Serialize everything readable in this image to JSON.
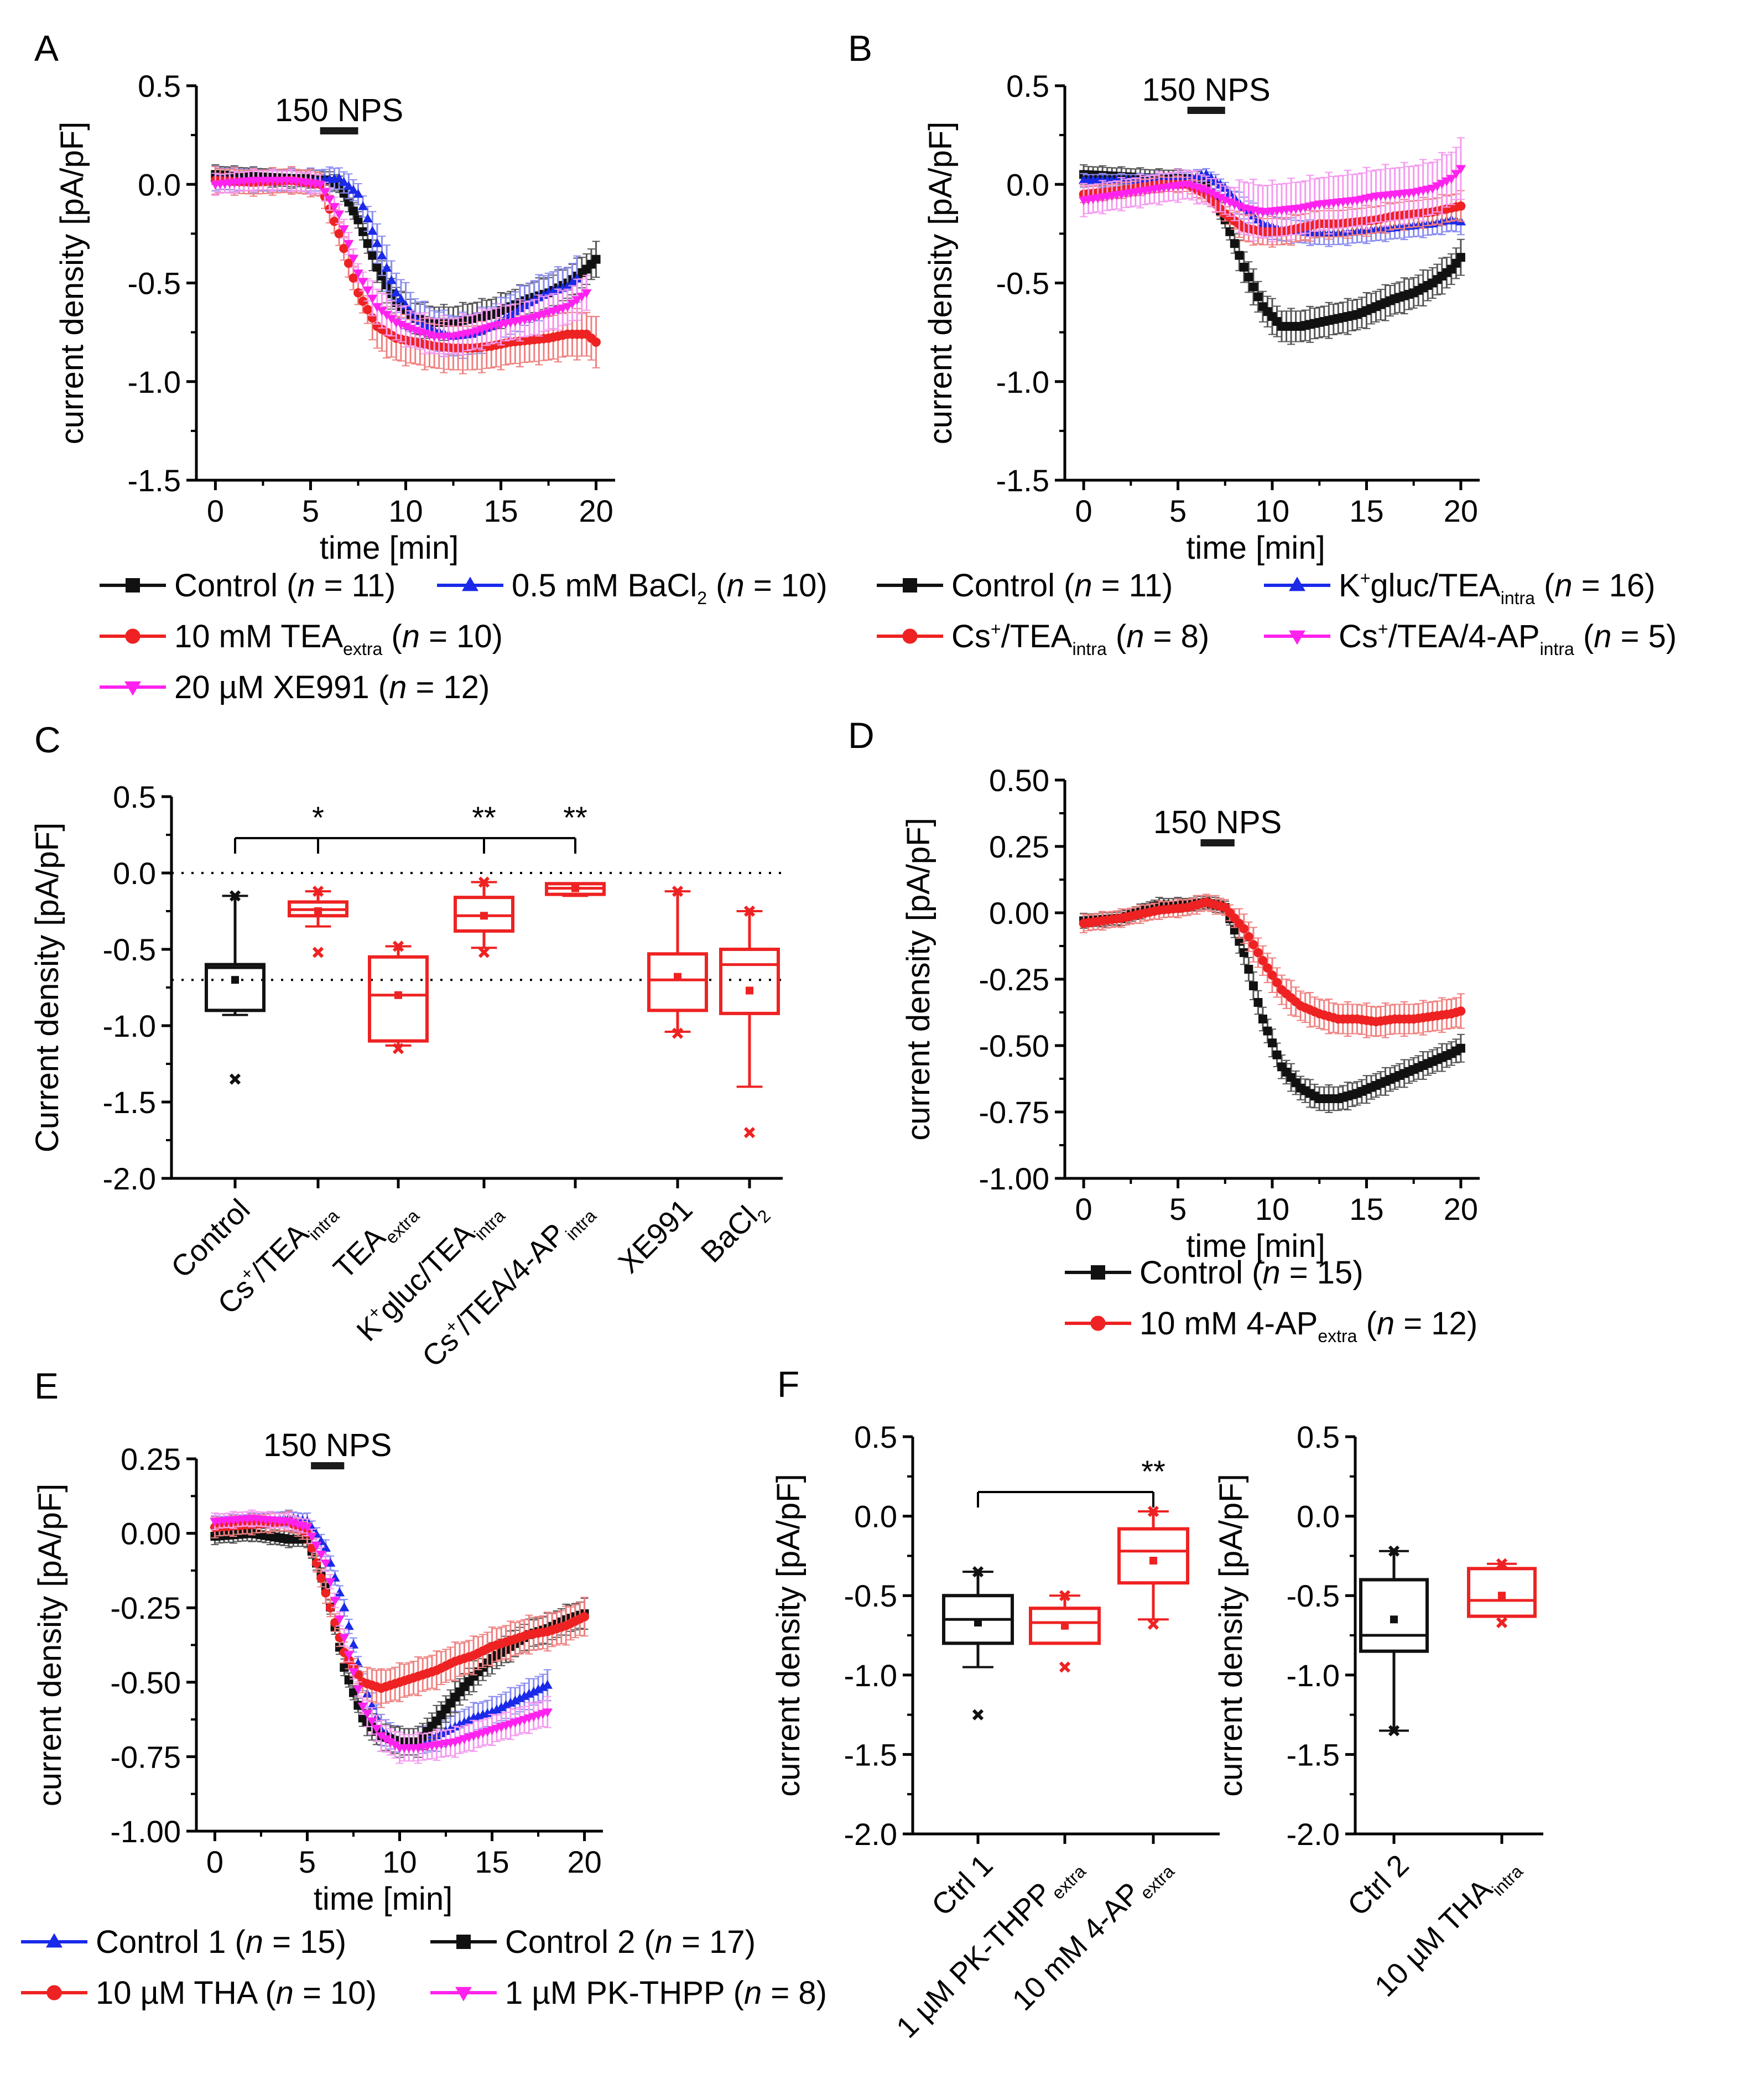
{
  "colors": {
    "black": "#111111",
    "red": "#ee2222",
    "blue": "#1a2ae8",
    "magenta": "#ff22ee",
    "errBlack": "#555555",
    "errRed": "#f08080",
    "errBlue": "#8a8cf0",
    "errMagenta": "#f59af0"
  },
  "common": {
    "stim_label": "150 NPS",
    "time_label": "time [min]"
  },
  "chart_data": [
    {
      "id": "A",
      "letter": "A",
      "type": "line",
      "ylabel": "current density [pA/pF]",
      "xlim": [
        -1,
        21
      ],
      "ylim": [
        -1.5,
        0.5
      ],
      "xticks": [
        0,
        5,
        10,
        15,
        20
      ],
      "yticks": [
        0.5,
        0.0,
        -0.5,
        -1.0,
        -1.5
      ],
      "ydecimals": 1,
      "stim": [
        5.5,
        7.5
      ],
      "series": [
        {
          "name": "Control (n = 11)",
          "color": "black",
          "marker": "square",
          "n": 11,
          "x": [
            0,
            2,
            4,
            5.5,
            6.5,
            7.5,
            8.5,
            9.5,
            10.5,
            11.5,
            12.5,
            13.5,
            14.5,
            15.5,
            16.5,
            17.5,
            18.5,
            19.5,
            20
          ],
          "y": [
            0.05,
            0.04,
            0.03,
            0.03,
            0.0,
            -0.18,
            -0.42,
            -0.6,
            -0.68,
            -0.7,
            -0.7,
            -0.68,
            -0.66,
            -0.62,
            -0.58,
            -0.55,
            -0.5,
            -0.43,
            -0.38
          ],
          "err": 0.07
        },
        {
          "name": "0.5 mM BaCl2 (n = 10)",
          "color": "blue",
          "marker": "triangle",
          "n": 10,
          "x": [
            0,
            2,
            4,
            5.5,
            6.5,
            7.5,
            8.5,
            9.5,
            10.5,
            11.5,
            12.5,
            13.5,
            14.5,
            15.5,
            16.5,
            17.5,
            18.5,
            19
          ],
          "y": [
            0.03,
            0.02,
            0.02,
            0.02,
            0.03,
            -0.05,
            -0.3,
            -0.55,
            -0.68,
            -0.74,
            -0.77,
            -0.76,
            -0.72,
            -0.66,
            -0.6,
            -0.55,
            -0.52,
            -0.48
          ],
          "err": 0.09
        },
        {
          "name": "10 mM TEAextra (n = 10)",
          "color": "red",
          "marker": "circle",
          "n": 10,
          "x": [
            0,
            2,
            4,
            5.5,
            6.5,
            7.5,
            8.5,
            9.5,
            10.5,
            11.5,
            12.5,
            13.5,
            14.5,
            15.5,
            16.5,
            17.5,
            18.5,
            19.5,
            20
          ],
          "y": [
            0.02,
            0.01,
            0.02,
            0.0,
            -0.25,
            -0.55,
            -0.72,
            -0.78,
            -0.8,
            -0.82,
            -0.83,
            -0.83,
            -0.82,
            -0.8,
            -0.79,
            -0.78,
            -0.76,
            -0.76,
            -0.8
          ],
          "err": 0.1
        },
        {
          "name": "20 µM XE991 (n = 12)",
          "color": "magenta",
          "marker": "down",
          "n": 12,
          "x": [
            0,
            2,
            4,
            5.5,
            6.5,
            7.5,
            8.5,
            9.5,
            10.5,
            11.5,
            12.5,
            13.5,
            14.5,
            15.5,
            16.5,
            17.5,
            18.5,
            19.5
          ],
          "y": [
            0.0,
            0.02,
            0.02,
            0.0,
            -0.15,
            -0.45,
            -0.62,
            -0.7,
            -0.74,
            -0.77,
            -0.77,
            -0.75,
            -0.72,
            -0.7,
            -0.68,
            -0.65,
            -0.62,
            -0.55
          ],
          "err": 0.08
        }
      ],
      "legend_rows": [
        [
          0,
          1
        ],
        [
          2
        ],
        [
          3
        ]
      ]
    },
    {
      "id": "B",
      "letter": "B",
      "type": "line",
      "ylabel": "current density [pA/pF]",
      "xlim": [
        -1,
        21
      ],
      "ylim": [
        -1.5,
        0.5
      ],
      "xticks": [
        0,
        5,
        10,
        15,
        20
      ],
      "yticks": [
        0.5,
        0.0,
        -0.5,
        -1.0,
        -1.5
      ],
      "ydecimals": 1,
      "stim": [
        5.5,
        7.5
      ],
      "series": [
        {
          "name": "Control (n = 11)",
          "color": "black",
          "marker": "square",
          "n": 11,
          "x": [
            0,
            2,
            4,
            5.5,
            6.5,
            7.5,
            8.5,
            9.5,
            10.5,
            11.5,
            12.5,
            13.5,
            14.5,
            15.5,
            16.5,
            17.5,
            18.5,
            19.5,
            20
          ],
          "y": [
            0.05,
            0.04,
            0.03,
            0.03,
            0.0,
            -0.18,
            -0.42,
            -0.62,
            -0.72,
            -0.72,
            -0.7,
            -0.68,
            -0.66,
            -0.62,
            -0.58,
            -0.55,
            -0.5,
            -0.43,
            -0.37
          ],
          "err": 0.07
        },
        {
          "name": "K+gluc/TEAintra (n = 16)",
          "color": "blue",
          "marker": "triangle",
          "n": 16,
          "x": [
            0,
            2,
            4,
            5.5,
            6.5,
            7.5,
            8.5,
            9.5,
            10.5,
            11.5,
            12.5,
            13.5,
            14.5,
            15.5,
            16.5,
            17.5,
            18.5,
            19.5,
            20
          ],
          "y": [
            0.02,
            0.02,
            0.02,
            0.03,
            0.05,
            -0.02,
            -0.12,
            -0.2,
            -0.23,
            -0.24,
            -0.25,
            -0.25,
            -0.24,
            -0.23,
            -0.22,
            -0.21,
            -0.2,
            -0.18,
            -0.19
          ],
          "err": 0.05
        },
        {
          "name": "Cs+/TEAintra (n = 8)",
          "color": "red",
          "marker": "circle",
          "n": 8,
          "x": [
            0,
            2,
            4,
            5.5,
            6.5,
            7.5,
            8.5,
            9.5,
            10.5,
            11.5,
            12.5,
            13.5,
            14.5,
            15.5,
            16.5,
            17.5,
            18.5,
            19.5,
            20
          ],
          "y": [
            -0.05,
            -0.03,
            0.0,
            0.0,
            -0.05,
            -0.15,
            -0.22,
            -0.24,
            -0.24,
            -0.22,
            -0.2,
            -0.2,
            -0.19,
            -0.18,
            -0.16,
            -0.15,
            -0.14,
            -0.12,
            -0.11
          ],
          "err": 0.06
        },
        {
          "name": "Cs+/TEA/4-APintra (n = 5)",
          "color": "magenta",
          "marker": "down",
          "n": 5,
          "x": [
            0,
            2,
            4,
            5.5,
            6.5,
            7.5,
            8.5,
            9.5,
            10.5,
            11.5,
            12.5,
            13.5,
            14.5,
            15.5,
            16.5,
            17.5,
            18.5,
            19.5,
            20
          ],
          "y": [
            -0.08,
            -0.05,
            -0.02,
            0.0,
            -0.03,
            -0.08,
            -0.12,
            -0.14,
            -0.13,
            -0.12,
            -0.1,
            -0.09,
            -0.08,
            -0.06,
            -0.05,
            -0.04,
            -0.02,
            0.03,
            0.08
          ],
          "err": 0.12
        }
      ],
      "legend_rows": [
        [
          0,
          1
        ],
        [
          2,
          3
        ]
      ]
    },
    {
      "id": "C",
      "letter": "C",
      "type": "box",
      "ylabel": "Current density [pA/pF]",
      "ylim": [
        -2.0,
        0.5
      ],
      "yticks": [
        0.5,
        0.0,
        -0.5,
        -1.0,
        -1.5,
        -2.0
      ],
      "ydecimals": 1,
      "reflines": [
        0.0,
        -0.7
      ],
      "categories": [
        "Control",
        "Cs+/TEAintra",
        "TEAextra",
        "K+gluc/TEAintra",
        "Cs+/TEA/4-AP intra",
        "XE991",
        "BaCl2"
      ],
      "boxes": [
        {
          "color": "black",
          "q1": -0.9,
          "med": -0.62,
          "q3": -0.6,
          "wlo": -0.93,
          "whi": -0.15,
          "mean": -0.7,
          "out": [
            -1.35,
            -0.15
          ]
        },
        {
          "color": "red",
          "q1": -0.28,
          "med": -0.24,
          "q3": -0.19,
          "wlo": -0.35,
          "whi": -0.12,
          "mean": -0.25,
          "out": [
            -0.52,
            -0.12
          ]
        },
        {
          "color": "red",
          "q1": -1.1,
          "med": -0.8,
          "q3": -0.55,
          "wlo": -1.13,
          "whi": -0.48,
          "mean": -0.8,
          "out": [
            -1.15,
            -0.48
          ]
        },
        {
          "color": "red",
          "q1": -0.38,
          "med": -0.28,
          "q3": -0.16,
          "wlo": -0.49,
          "whi": -0.06,
          "mean": -0.28,
          "out": [
            -0.52,
            -0.06
          ]
        },
        {
          "color": "red",
          "q1": -0.14,
          "med": -0.1,
          "q3": -0.07,
          "wlo": -0.15,
          "whi": -0.07,
          "mean": -0.1,
          "out": []
        },
        {
          "color": "red",
          "q1": -0.9,
          "med": -0.7,
          "q3": -0.53,
          "wlo": -1.04,
          "whi": -0.12,
          "mean": -0.68,
          "out": [
            -1.05,
            -0.12
          ]
        },
        {
          "color": "red",
          "q1": -0.92,
          "med": -0.6,
          "q3": -0.5,
          "wlo": -1.4,
          "whi": -0.25,
          "mean": -0.77,
          "out": [
            -1.7,
            -0.25
          ]
        }
      ],
      "brackets": [
        {
          "to": 1,
          "label": "*"
        },
        {
          "to": 3,
          "label": "**"
        },
        {
          "to": 4,
          "label": "**"
        }
      ]
    },
    {
      "id": "D",
      "letter": "D",
      "type": "line",
      "ylabel": "current density [pA/pF]",
      "xlim": [
        -1,
        21
      ],
      "ylim": [
        -1.0,
        0.5
      ],
      "xticks": [
        0,
        5,
        10,
        15,
        20
      ],
      "yticks": [
        0.5,
        0.25,
        0.0,
        -0.25,
        -0.5,
        -0.75,
        -1.0
      ],
      "ydecimals": 2,
      "stim": [
        6.2,
        8.0
      ],
      "series": [
        {
          "name": "Control (n = 15)",
          "color": "black",
          "marker": "square",
          "n": 15,
          "x": [
            0,
            2,
            4,
            5.5,
            6.5,
            7.5,
            8.5,
            9.5,
            10.5,
            11.5,
            12.5,
            13.5,
            14.5,
            15.5,
            16.5,
            17.5,
            18.5,
            19.5,
            20
          ],
          "y": [
            -0.03,
            -0.02,
            0.03,
            0.03,
            0.04,
            0.02,
            -0.15,
            -0.4,
            -0.58,
            -0.66,
            -0.7,
            -0.7,
            -0.68,
            -0.65,
            -0.62,
            -0.59,
            -0.56,
            -0.53,
            -0.51
          ],
          "err": 0.04
        },
        {
          "name": "10 mM 4-APextra (n = 12)",
          "color": "red",
          "marker": "circle",
          "n": 12,
          "x": [
            0,
            2,
            4,
            5.5,
            6.5,
            7.5,
            8.5,
            9.5,
            10.5,
            11.5,
            12.5,
            13.5,
            14.5,
            15.5,
            16.5,
            17.5,
            18.5,
            19.5,
            20
          ],
          "y": [
            -0.04,
            -0.02,
            0.01,
            0.02,
            0.04,
            0.02,
            -0.06,
            -0.18,
            -0.29,
            -0.35,
            -0.38,
            -0.4,
            -0.4,
            -0.41,
            -0.4,
            -0.4,
            -0.39,
            -0.38,
            -0.37
          ],
          "err": 0.05
        }
      ],
      "legend_rows": [
        [
          0
        ],
        [
          1
        ]
      ]
    },
    {
      "id": "E",
      "letter": "E",
      "type": "line",
      "ylabel": "current density [pA/pF]",
      "xlim": [
        -1,
        21
      ],
      "ylim": [
        -1.0,
        0.25
      ],
      "xticks": [
        0,
        5,
        10,
        15,
        20
      ],
      "yticks": [
        0.25,
        0.0,
        -0.25,
        -0.5,
        -0.75,
        -1.0
      ],
      "ydecimals": 2,
      "stim": [
        5.2,
        7.0
      ],
      "series": [
        {
          "name": "Control 1 (n = 15)",
          "color": "blue",
          "marker": "triangle",
          "n": 15,
          "x": [
            0,
            2,
            4,
            5,
            6,
            7,
            8,
            9,
            10,
            11,
            12,
            13,
            14,
            15,
            16,
            17,
            18
          ],
          "y": [
            0.03,
            0.04,
            0.05,
            0.04,
            -0.05,
            -0.25,
            -0.5,
            -0.66,
            -0.7,
            -0.7,
            -0.68,
            -0.65,
            -0.62,
            -0.6,
            -0.57,
            -0.54,
            -0.51
          ],
          "err": 0.04
        },
        {
          "name": "Control 2 (n = 17)",
          "color": "black",
          "marker": "square",
          "n": 17,
          "x": [
            0,
            2,
            4,
            5,
            6,
            7,
            8,
            9,
            10,
            11,
            12,
            13,
            14,
            15,
            16,
            17,
            18,
            19,
            20
          ],
          "y": [
            -0.01,
            0.0,
            -0.02,
            -0.02,
            -0.18,
            -0.45,
            -0.62,
            -0.68,
            -0.7,
            -0.7,
            -0.63,
            -0.55,
            -0.48,
            -0.42,
            -0.38,
            -0.34,
            -0.32,
            -0.29,
            -0.27
          ],
          "err": 0.04
        },
        {
          "name": "10 µM THA (n = 10)",
          "color": "red",
          "marker": "circle",
          "n": 10,
          "x": [
            0,
            2,
            4,
            5,
            6,
            7,
            8,
            9,
            10,
            11,
            12,
            13,
            14,
            15,
            16,
            17,
            18,
            19,
            20
          ],
          "y": [
            0.02,
            0.03,
            0.04,
            0.0,
            -0.2,
            -0.4,
            -0.5,
            -0.52,
            -0.5,
            -0.48,
            -0.46,
            -0.43,
            -0.41,
            -0.38,
            -0.36,
            -0.34,
            -0.33,
            -0.31,
            -0.28
          ],
          "err": 0.05
        },
        {
          "name": "1 µM PK-THPP (n = 8)",
          "color": "magenta",
          "marker": "down",
          "n": 8,
          "x": [
            0,
            2,
            4,
            5,
            6,
            7,
            8,
            9,
            10,
            11,
            12,
            13,
            14,
            15,
            16,
            17,
            18
          ],
          "y": [
            0.04,
            0.05,
            0.04,
            0.02,
            -0.1,
            -0.35,
            -0.58,
            -0.68,
            -0.72,
            -0.72,
            -0.71,
            -0.7,
            -0.68,
            -0.66,
            -0.64,
            -0.62,
            -0.6
          ],
          "err": 0.04
        }
      ],
      "legend_rows": [
        [
          0,
          1
        ],
        [
          2,
          3
        ]
      ]
    },
    {
      "id": "F1",
      "letter": "F",
      "type": "box",
      "ylabel": "current density [pA/pF]",
      "ylim": [
        -2.0,
        0.5
      ],
      "yticks": [
        0.5,
        0.0,
        -0.5,
        -1.0,
        -1.5,
        -2.0
      ],
      "ydecimals": 1,
      "reflines": [],
      "categories": [
        "Ctrl 1",
        "1 µM PK-THPP extra",
        "10 mM 4-AP extra"
      ],
      "boxes": [
        {
          "color": "black",
          "q1": -0.8,
          "med": -0.65,
          "q3": -0.5,
          "wlo": -0.95,
          "whi": -0.35,
          "mean": -0.67,
          "out": [
            -1.25,
            -0.35
          ]
        },
        {
          "color": "red",
          "q1": -0.8,
          "med": -0.67,
          "q3": -0.58,
          "wlo": -0.8,
          "whi": -0.5,
          "mean": -0.69,
          "out": [
            -0.95,
            -0.5
          ]
        },
        {
          "color": "red",
          "q1": -0.42,
          "med": -0.22,
          "q3": -0.08,
          "wlo": -0.65,
          "whi": 0.03,
          "mean": -0.28,
          "out": [
            -0.68,
            0.03
          ]
        }
      ],
      "brackets": [
        {
          "to": 2,
          "label": "**"
        }
      ]
    },
    {
      "id": "F2",
      "letter": "",
      "type": "box",
      "ylabel": "current density [pA/pF]",
      "ylim": [
        -2.0,
        0.5
      ],
      "yticks": [
        0.5,
        0.0,
        -0.5,
        -1.0,
        -1.5,
        -2.0
      ],
      "ydecimals": 1,
      "reflines": [],
      "categories": [
        "Ctrl 2",
        "10 µM THAintra"
      ],
      "boxes": [
        {
          "color": "black",
          "q1": -0.85,
          "med": -0.75,
          "q3": -0.4,
          "wlo": -1.35,
          "whi": -0.22,
          "mean": -0.65,
          "out": [
            -1.35,
            -0.22
          ]
        },
        {
          "color": "red",
          "q1": -0.63,
          "med": -0.53,
          "q3": -0.33,
          "wlo": -0.63,
          "whi": -0.3,
          "mean": -0.5,
          "out": [
            -0.67,
            -0.3
          ]
        }
      ],
      "brackets": []
    }
  ]
}
